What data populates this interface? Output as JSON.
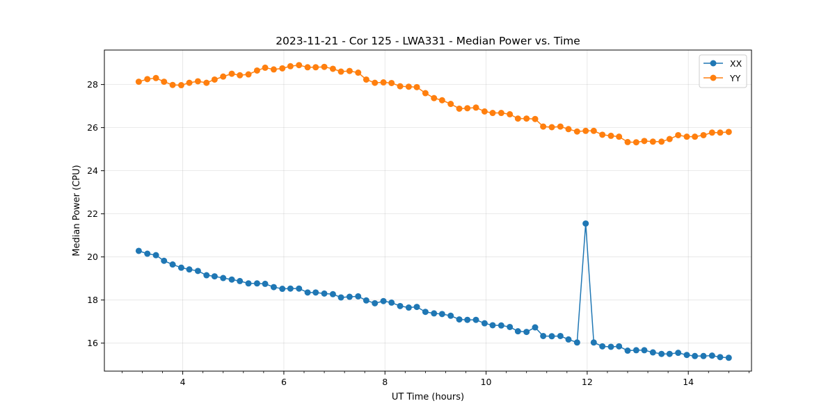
{
  "chart_data": {
    "type": "line",
    "title": "2023-11-21 - Cor 125 - LWA331 - Median Power vs. Time",
    "xlabel": "UT Time (hours)",
    "ylabel": "Median Power (CPU)",
    "xlim": [
      2.45,
      15.25
    ],
    "ylim": [
      14.7,
      29.6
    ],
    "xticks": [
      4,
      6,
      8,
      10,
      12,
      14
    ],
    "xtick_labels": [
      "4",
      "6",
      "8",
      "10",
      "12",
      "14"
    ],
    "xminor_step": 0.4,
    "yticks": [
      16,
      18,
      20,
      22,
      24,
      26,
      28
    ],
    "ytick_labels": [
      "16",
      "18",
      "20",
      "22",
      "24",
      "26",
      "28"
    ],
    "grid": true,
    "legend_position": "top-right",
    "x": [
      3.13,
      3.3,
      3.47,
      3.63,
      3.8,
      3.97,
      4.13,
      4.3,
      4.47,
      4.63,
      4.8,
      4.97,
      5.13,
      5.3,
      5.47,
      5.63,
      5.8,
      5.97,
      6.13,
      6.3,
      6.47,
      6.63,
      6.8,
      6.97,
      7.13,
      7.3,
      7.47,
      7.63,
      7.8,
      7.97,
      8.13,
      8.3,
      8.47,
      8.63,
      8.8,
      8.97,
      9.13,
      9.3,
      9.47,
      9.63,
      9.8,
      9.97,
      10.13,
      10.3,
      10.47,
      10.63,
      10.8,
      10.97,
      11.13,
      11.3,
      11.47,
      11.63,
      11.8,
      11.97,
      12.13,
      12.3,
      12.47,
      12.63,
      12.8,
      12.97,
      13.13,
      13.3,
      13.47,
      13.63,
      13.8,
      13.97,
      14.13,
      14.3,
      14.47,
      14.63,
      14.8
    ],
    "series": [
      {
        "name": "XX",
        "color": "#1f77b4",
        "values": [
          20.28,
          20.15,
          20.08,
          19.82,
          19.65,
          19.5,
          19.42,
          19.35,
          19.15,
          19.1,
          19.02,
          18.95,
          18.88,
          18.77,
          18.77,
          18.75,
          18.6,
          18.52,
          18.53,
          18.53,
          18.35,
          18.35,
          18.3,
          18.27,
          18.12,
          18.15,
          18.17,
          17.98,
          17.85,
          17.95,
          17.88,
          17.72,
          17.65,
          17.68,
          17.45,
          17.38,
          17.35,
          17.27,
          17.1,
          17.08,
          17.08,
          16.92,
          16.83,
          16.82,
          16.75,
          16.55,
          16.52,
          16.73,
          16.33,
          16.32,
          16.33,
          16.17,
          16.03,
          21.55,
          16.03,
          15.85,
          15.83,
          15.85,
          15.65,
          15.67,
          15.67,
          15.57,
          15.5,
          15.5,
          15.55,
          15.45,
          15.4,
          15.4,
          15.42,
          15.35,
          15.32
        ]
      },
      {
        "name": "YY",
        "color": "#ff7f0e",
        "values": [
          28.13,
          28.25,
          28.3,
          28.13,
          27.98,
          27.97,
          28.08,
          28.15,
          28.08,
          28.23,
          28.37,
          28.5,
          28.43,
          28.47,
          28.65,
          28.78,
          28.7,
          28.75,
          28.85,
          28.9,
          28.8,
          28.8,
          28.82,
          28.73,
          28.6,
          28.63,
          28.55,
          28.23,
          28.08,
          28.1,
          28.07,
          27.92,
          27.9,
          27.88,
          27.6,
          27.37,
          27.27,
          27.1,
          26.88,
          26.9,
          26.93,
          26.75,
          26.68,
          26.68,
          26.62,
          26.42,
          26.42,
          26.4,
          26.05,
          26.02,
          26.05,
          25.93,
          25.82,
          25.85,
          25.85,
          25.67,
          25.62,
          25.58,
          25.33,
          25.32,
          25.38,
          25.35,
          25.35,
          25.47,
          25.65,
          25.58,
          25.58,
          25.65,
          25.77,
          25.77,
          25.8
        ]
      }
    ]
  }
}
